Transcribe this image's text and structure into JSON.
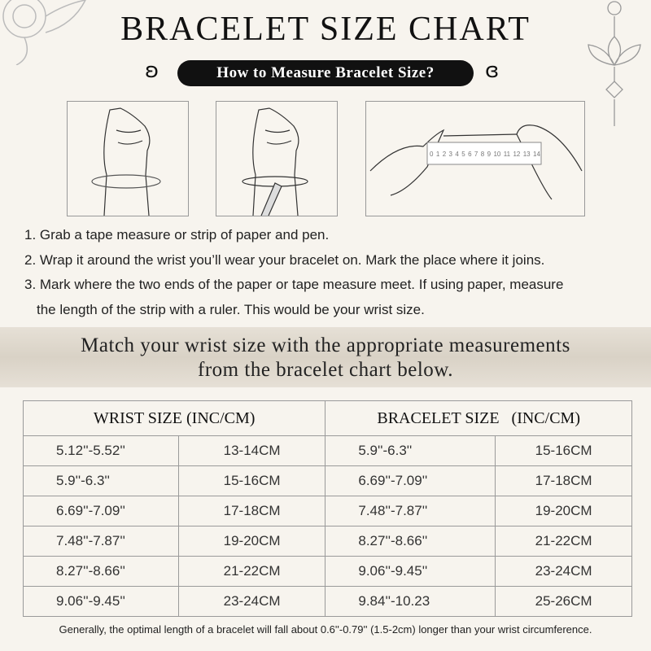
{
  "title": "BRACELET SIZE CHART",
  "subtitle": "How to Measure Bracelet Size?",
  "ruler_numbers": [
    "0",
    "1",
    "2",
    "3",
    "4",
    "5",
    "6",
    "7",
    "8",
    "9",
    "10",
    "11",
    "12",
    "13",
    "14"
  ],
  "steps": [
    "1. Grab a tape measure or strip of paper and pen.",
    "2. Wrap it around the wrist you’ll wear your bracelet on. Mark the place where it joins.",
    "3. Mark where the two ends of the paper or tape measure meet. If using paper, measure",
    "the length of the strip with a ruler. This would be your wrist size."
  ],
  "band": {
    "line1": "Match your wrist size with the appropriate measurements",
    "line2": "from the bracelet chart below."
  },
  "table": {
    "headers": [
      "WRIST SIZE (INC/CM)",
      "BRACELET SIZE   (INC/CM)"
    ],
    "rows": [
      [
        "5.12''-5.52''",
        "13-14CM",
        "5.9''-6.3''",
        "15-16CM"
      ],
      [
        "5.9''-6.3''",
        "15-16CM",
        "6.69''-7.09''",
        "17-18CM"
      ],
      [
        "6.69''-7.09''",
        "17-18CM",
        "7.48''-7.87''",
        "19-20CM"
      ],
      [
        "7.48''-7.87''",
        "19-20CM",
        "8.27''-8.66''",
        "21-22CM"
      ],
      [
        "8.27''-8.66''",
        "21-22CM",
        "9.06''-9.45''",
        "23-24CM"
      ],
      [
        "9.06''-9.45''",
        "23-24CM",
        "9.84''-10.23",
        "25-26CM"
      ]
    ]
  },
  "footnote": "Generally, the optimal length of a bracelet will fall about 0.6''-0.79'' (1.5-2cm) longer than your wrist circumference."
}
